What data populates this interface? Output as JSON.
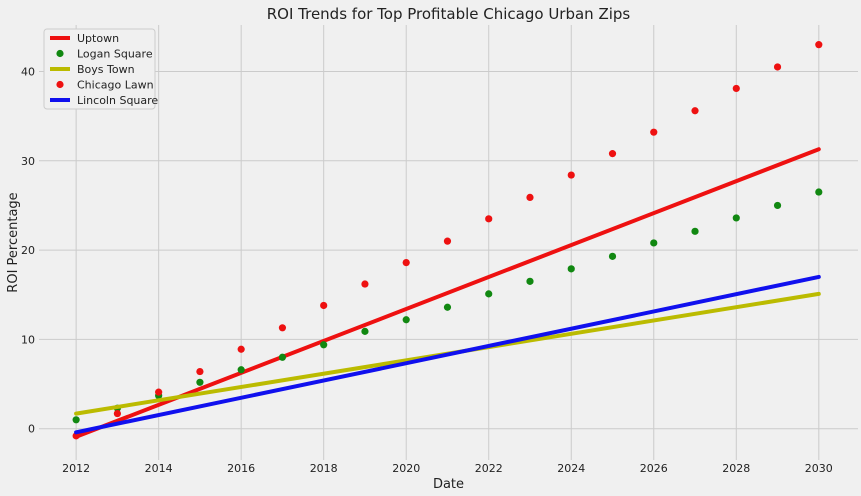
{
  "chart_data": {
    "type": "line",
    "title": "ROI Trends for Top Profitable Chicago Urban Zips",
    "xlabel": "Date",
    "ylabel": "ROI Percentage",
    "xlim": [
      2011.1,
      2030.95
    ],
    "ylim": [
      -3.5,
      45.2
    ],
    "xticks": [
      2012,
      2014,
      2016,
      2018,
      2020,
      2022,
      2024,
      2026,
      2028,
      2030
    ],
    "yticks": [
      0,
      10,
      20,
      30,
      40
    ],
    "grid": true,
    "legend_position": "top-left",
    "series": [
      {
        "name": "Uptown",
        "style": "line",
        "color": "#ee1111",
        "x": [
          2012,
          2030
        ],
        "y": [
          -0.9,
          31.3
        ]
      },
      {
        "name": "Logan Square",
        "style": "scatter",
        "color": "#118811",
        "x": [
          2012,
          2013,
          2014,
          2015,
          2016,
          2017,
          2018,
          2019,
          2020,
          2021,
          2022,
          2023,
          2024,
          2025,
          2026,
          2027,
          2028,
          2029,
          2030
        ],
        "y": [
          1.0,
          2.3,
          3.7,
          5.2,
          6.6,
          8.0,
          9.4,
          10.9,
          12.2,
          13.6,
          15.1,
          16.5,
          17.9,
          19.3,
          20.8,
          22.1,
          23.6,
          25.0,
          26.5
        ]
      },
      {
        "name": "Boys Town",
        "style": "line",
        "color": "#bbbb00",
        "x": [
          2012,
          2030
        ],
        "y": [
          1.7,
          15.1
        ]
      },
      {
        "name": "Chicago Lawn",
        "style": "scatter",
        "color": "#ee1111",
        "x": [
          2012,
          2013,
          2014,
          2015,
          2016,
          2017,
          2018,
          2019,
          2020,
          2021,
          2022,
          2023,
          2024,
          2025,
          2026,
          2027,
          2028,
          2029,
          2030
        ],
        "y": [
          -0.8,
          1.7,
          4.1,
          6.4,
          8.9,
          11.3,
          13.8,
          16.2,
          18.6,
          21.0,
          23.5,
          25.9,
          28.4,
          30.8,
          33.2,
          35.6,
          38.1,
          40.5,
          43.0
        ]
      },
      {
        "name": "Lincoln Square",
        "style": "line",
        "color": "#1010ee",
        "x": [
          2012,
          2030
        ],
        "y": [
          -0.4,
          17.0
        ]
      }
    ]
  }
}
